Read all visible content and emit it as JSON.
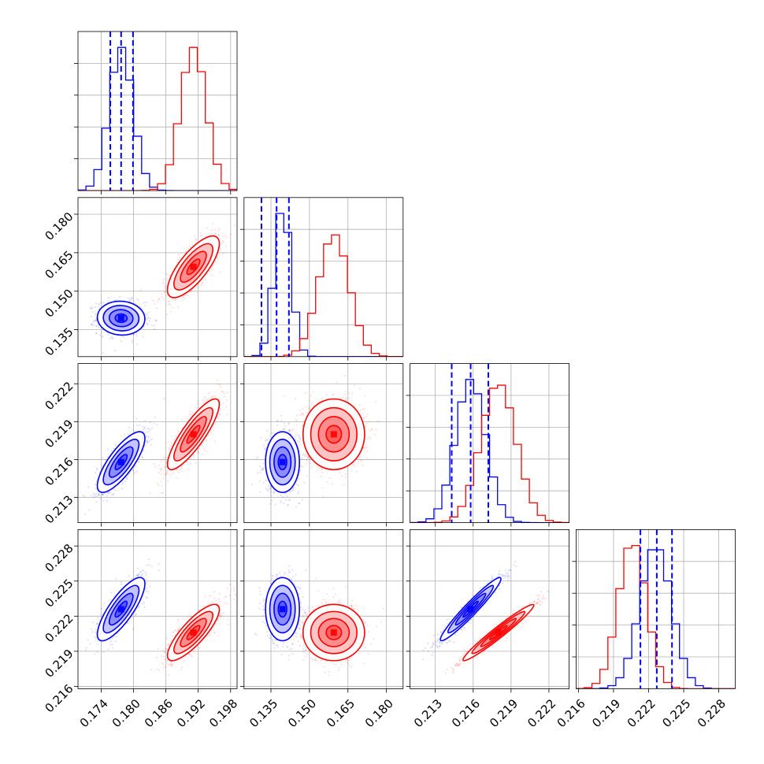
{
  "chart_data": {
    "type": "scatter",
    "subtype": "corner-plot",
    "title": "",
    "grid": true,
    "legend": "none",
    "colors": {
      "blue": "#0000ff",
      "red": "#ff0000"
    },
    "series": [
      {
        "color": "blue",
        "mean": [
          0.1777,
          0.1395,
          0.2158,
          0.2226
        ],
        "sd": [
          0.0022,
          0.0033,
          0.0012,
          0.00135
        ],
        "quantiles_shown": true
      },
      {
        "color": "red",
        "mean": [
          0.1911,
          0.1595,
          0.218,
          0.2206
        ],
        "sd": [
          0.0024,
          0.006,
          0.0014,
          0.0012
        ],
        "quantiles_shown": false
      }
    ],
    "correlations": {
      "blue": {
        "0-1": -0.05,
        "0-2": 0.78,
        "0-3": 0.8,
        "1-2": 0.0,
        "1-3": 0.0,
        "2-3": 0.96
      },
      "red": {
        "0-1": 0.75,
        "0-2": 0.85,
        "0-3": 0.82,
        "1-2": 0.0,
        "1-3": 0.0,
        "2-3": 0.97
      }
    },
    "quantile_lines": [
      [
        0.1757,
        0.1777,
        0.1799
      ],
      [
        0.1313,
        0.1372,
        0.142
      ],
      [
        0.2143,
        0.2158,
        0.2172
      ],
      [
        0.2213,
        0.2227,
        0.224
      ]
    ],
    "axis_ranges": [
      [
        0.1697,
        0.1992
      ],
      [
        0.1245,
        0.1865
      ],
      [
        0.211,
        0.2236
      ],
      [
        0.2158,
        0.2294
      ]
    ],
    "ticks": [
      [
        "0.174",
        "0.180",
        "0.186",
        "0.192",
        "0.198"
      ],
      [
        "0.135",
        "0.150",
        "0.165",
        "0.180"
      ],
      [
        "0.213",
        "0.216",
        "0.219",
        "0.222"
      ],
      [
        "0.216",
        "0.219",
        "0.222",
        "0.225",
        "0.228"
      ]
    ],
    "histograms": {
      "bins": 20,
      "blue_peaks": [
        1.0,
        1.0,
        1.0,
        0.97
      ],
      "red_peaks": [
        1.0,
        0.85,
        0.96,
        1.0
      ]
    },
    "contour_levels": [
      0.5,
      1.0,
      1.5,
      2.0
    ]
  }
}
